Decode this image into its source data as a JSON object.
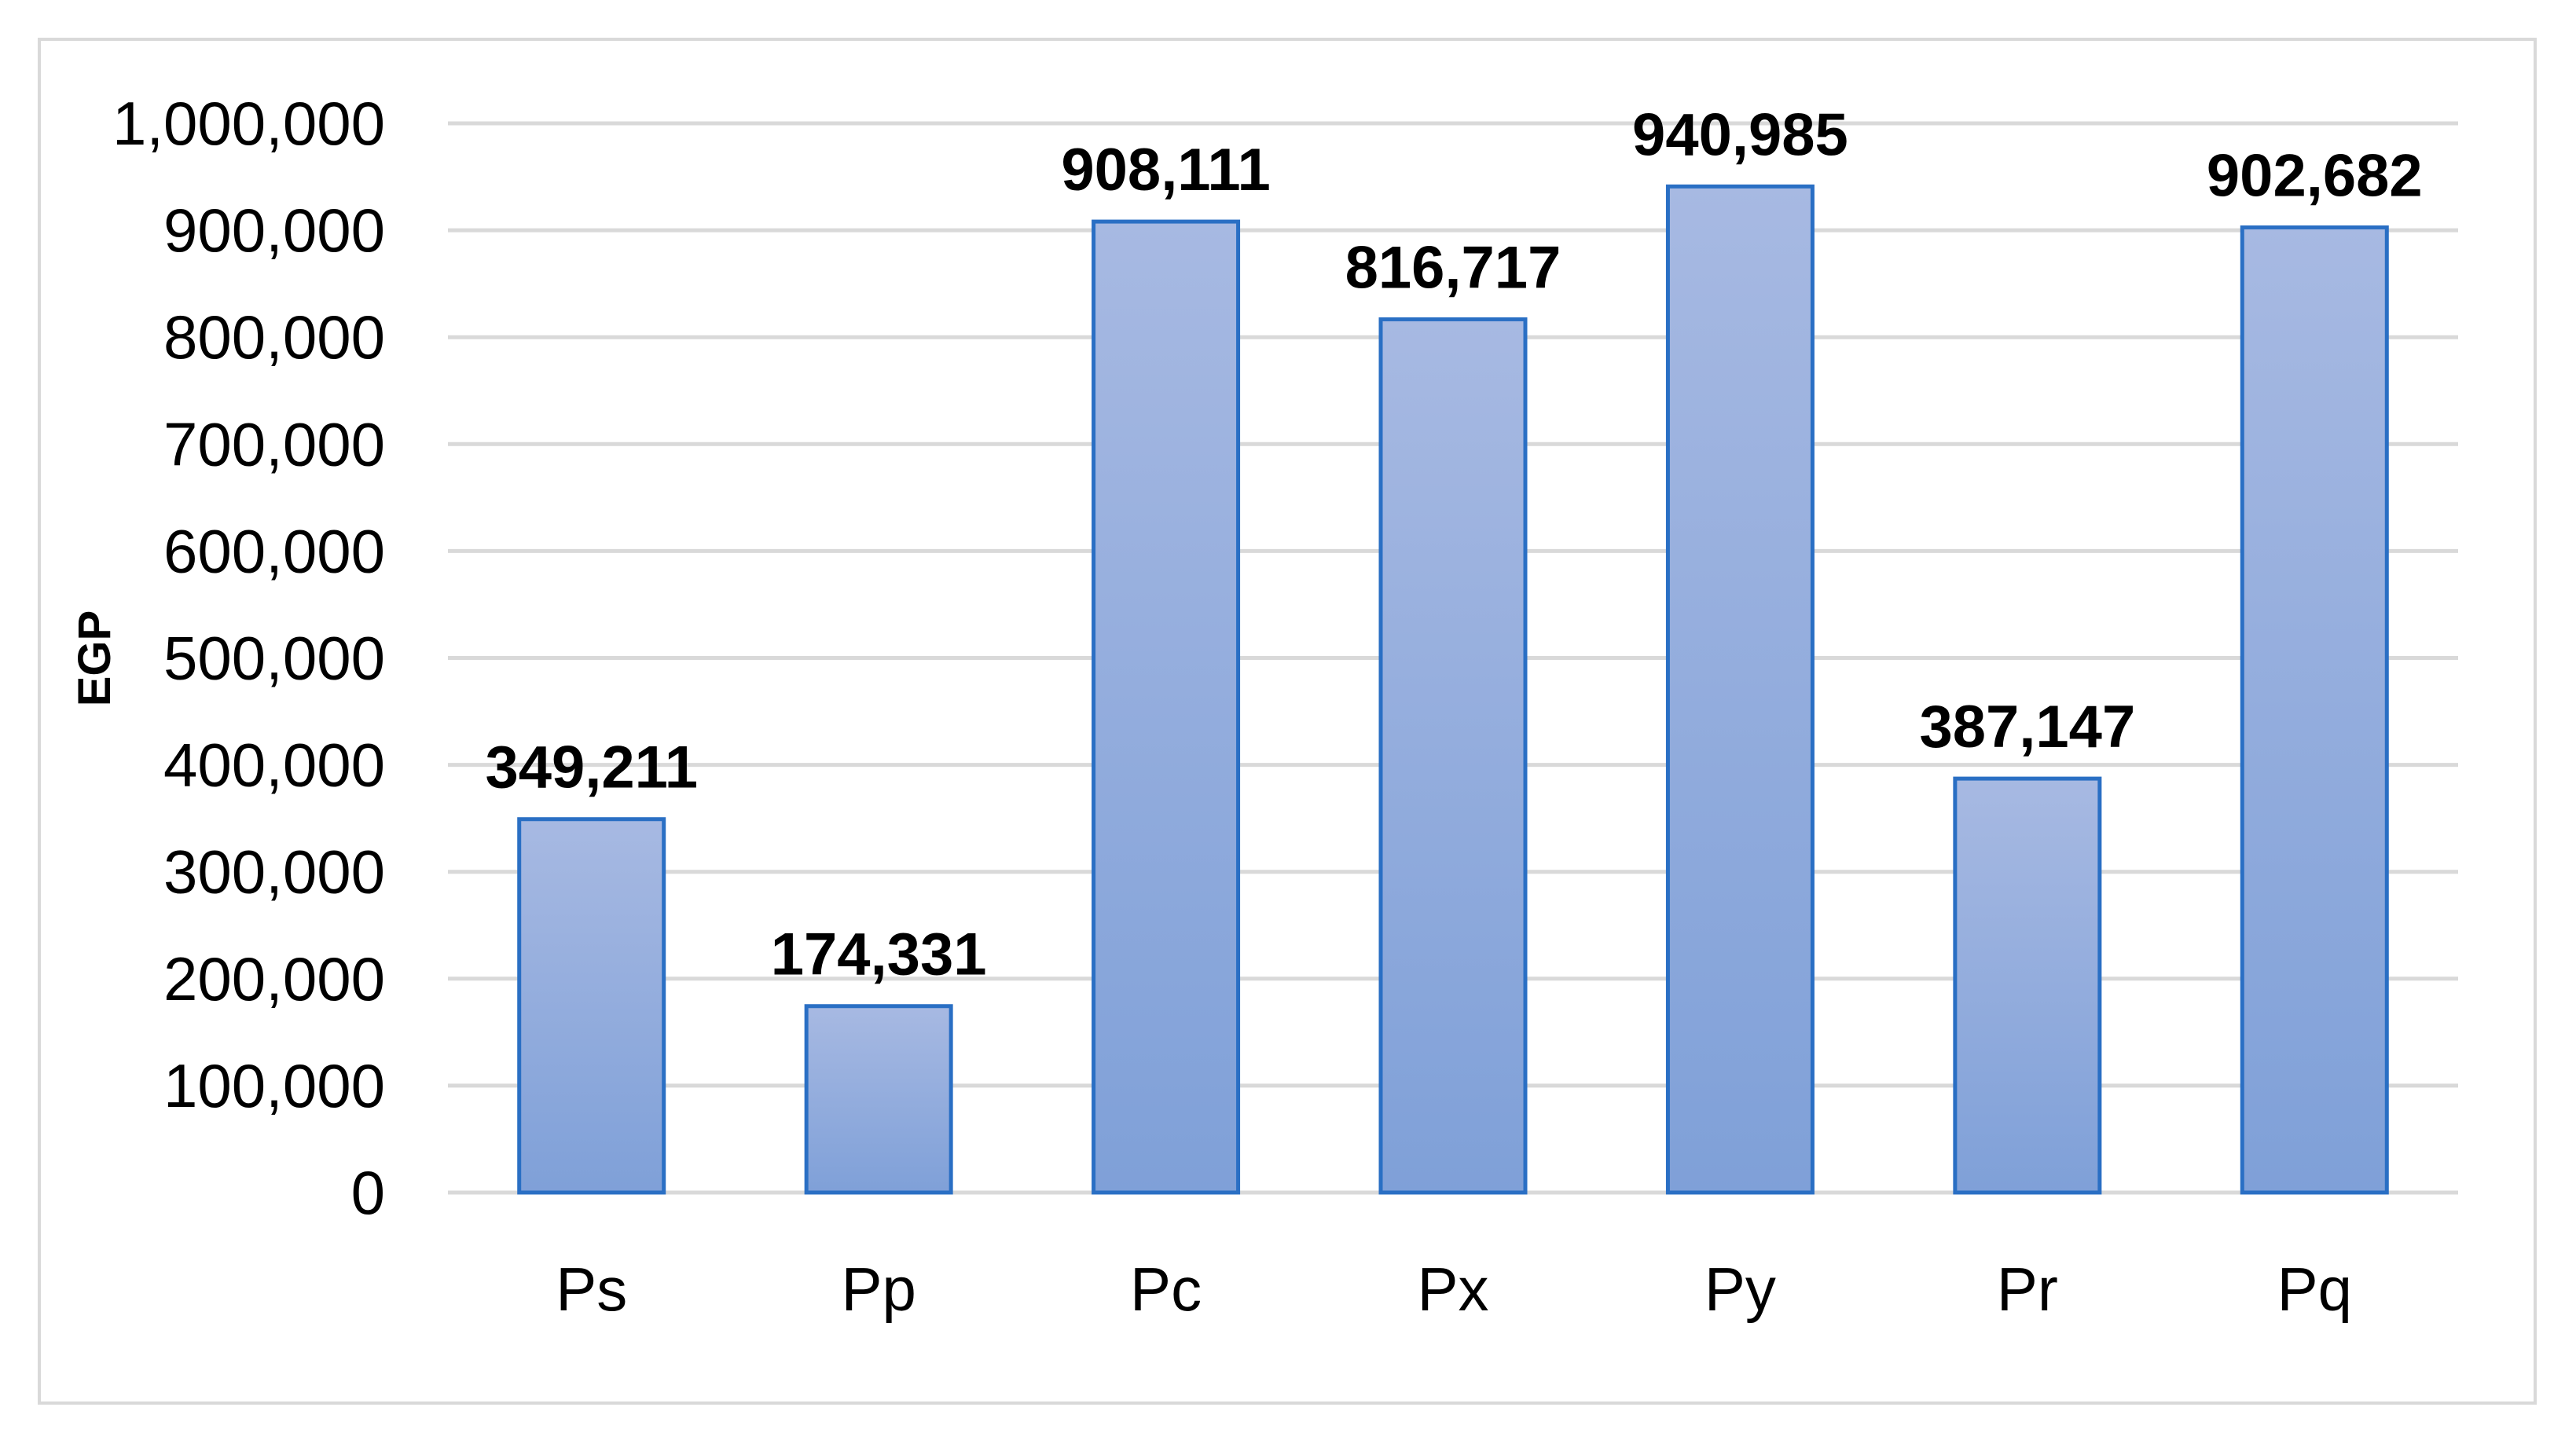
{
  "chart_data": {
    "type": "bar",
    "title": "",
    "xlabel": "",
    "ylabel": "EGP",
    "categories": [
      "Ps",
      "Pp",
      "Pc",
      "Px",
      "Py",
      "Pr",
      "Pq"
    ],
    "values": [
      349211,
      174331,
      908111,
      816717,
      940985,
      387147,
      902682
    ],
    "data_labels": [
      "349,211",
      "174,331",
      "908,111",
      "816,717",
      "940,985",
      "387,147",
      "902,682"
    ],
    "ylim": [
      0,
      1000000
    ],
    "yticks": [
      0,
      100000,
      200000,
      300000,
      400000,
      500000,
      600000,
      700000,
      800000,
      900000,
      1000000
    ],
    "ytick_labels": [
      "0",
      "100,000",
      "200,000",
      "300,000",
      "400,000",
      "500,000",
      "600,000",
      "700,000",
      "800,000",
      "900,000",
      "1,000,000"
    ],
    "grid": true,
    "legend": "none",
    "colors": {
      "bar_top": "#a7b9e2",
      "bar_bottom": "#7fa0d8",
      "bar_border": "#2a6fc4",
      "grid": "#d9d9d9",
      "frame": "#d9d9d9"
    }
  }
}
